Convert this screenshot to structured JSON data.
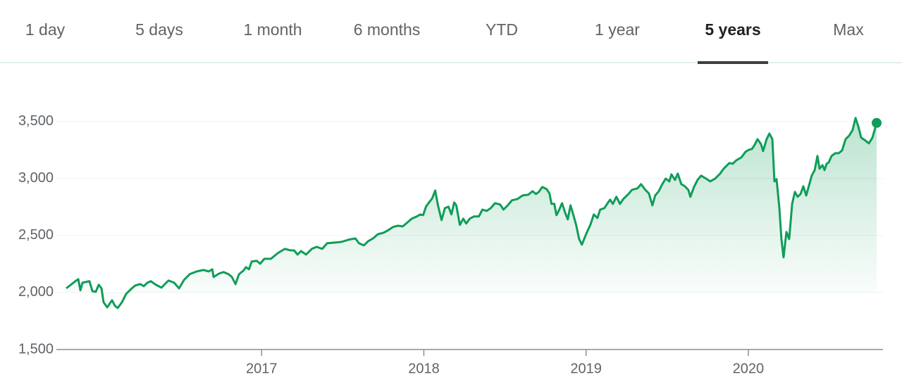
{
  "tabs": [
    "1 day",
    "5 days",
    "1 month",
    "6 months",
    "YTD",
    "1 year",
    "5 years",
    "Max"
  ],
  "selected_tab": 6,
  "chart_data": {
    "type": "area-line",
    "color": "#0f9d58",
    "grid": true,
    "x": [
      2015.796,
      2015.852,
      2015.87,
      2015.883,
      2015.896,
      2015.939,
      2015.957,
      2015.978,
      2015.996,
      2016.013,
      2016.026,
      2016.048,
      2016.078,
      2016.096,
      2016.113,
      2016.139,
      2016.165,
      2016.2,
      2016.222,
      2016.252,
      2016.274,
      2016.296,
      2016.317,
      2016.348,
      2016.383,
      2016.404,
      2016.426,
      2016.461,
      2016.491,
      2016.522,
      2016.557,
      2016.6,
      2016.643,
      2016.674,
      2016.696,
      2016.704,
      2016.739,
      2016.765,
      2016.796,
      2016.817,
      2016.839,
      2016.861,
      2016.887,
      2016.904,
      2016.922,
      2016.939,
      2016.97,
      2016.991,
      2017.017,
      2017.057,
      2017.1,
      2017.143,
      2017.178,
      2017.2,
      2017.222,
      2017.243,
      2017.274,
      2017.309,
      2017.339,
      2017.374,
      2017.404,
      2017.448,
      2017.491,
      2017.535,
      2017.578,
      2017.6,
      2017.63,
      2017.657,
      2017.687,
      2017.717,
      2017.752,
      2017.783,
      2017.809,
      2017.839,
      2017.87,
      2017.896,
      2017.926,
      2017.957,
      2017.978,
      2017.996,
      2018.013,
      2018.035,
      2018.052,
      2018.07,
      2018.087,
      2018.109,
      2018.13,
      2018.152,
      2018.17,
      2018.187,
      2018.2,
      2018.222,
      2018.243,
      2018.261,
      2018.283,
      2018.309,
      2018.339,
      2018.361,
      2018.387,
      2018.413,
      2018.439,
      2018.47,
      2018.491,
      2018.517,
      2018.543,
      2018.578,
      2018.609,
      2018.643,
      2018.67,
      2018.691,
      2018.709,
      2018.73,
      2018.757,
      2018.774,
      2018.787,
      2018.804,
      2018.817,
      2018.835,
      2018.852,
      2018.87,
      2018.887,
      2018.904,
      2018.922,
      2018.939,
      2018.957,
      2018.974,
      2019.0,
      2019.026,
      2019.048,
      2019.07,
      2019.087,
      2019.113,
      2019.13,
      2019.148,
      2019.165,
      2019.187,
      2019.209,
      2019.23,
      2019.261,
      2019.283,
      2019.317,
      2019.339,
      2019.365,
      2019.387,
      2019.409,
      2019.426,
      2019.448,
      2019.47,
      2019.491,
      2019.513,
      2019.526,
      2019.548,
      2019.565,
      2019.587,
      2019.609,
      2019.63,
      2019.643,
      2019.665,
      2019.687,
      2019.709,
      2019.739,
      2019.765,
      2019.796,
      2019.826,
      2019.848,
      2019.883,
      2019.904,
      2019.926,
      2019.957,
      2019.983,
      2020.004,
      2020.022,
      2020.039,
      2020.057,
      2020.078,
      2020.091,
      2020.113,
      2020.13,
      2020.148,
      2020.161,
      2020.174,
      2020.191,
      2020.204,
      2020.217,
      2020.235,
      2020.252,
      2020.27,
      2020.287,
      2020.304,
      2020.322,
      2020.339,
      2020.357,
      2020.374,
      2020.391,
      2020.409,
      2020.426,
      2020.439,
      2020.457,
      2020.47,
      2020.483,
      2020.496,
      2020.513,
      2020.535,
      2020.557,
      2020.578,
      2020.6,
      2020.622,
      2020.643,
      2020.661,
      2020.678,
      2020.696,
      2020.722,
      2020.743,
      2020.765,
      2020.791
    ],
    "values": [
      2037,
      2099,
      2117,
      2019,
      2086,
      2099,
      2012,
      2006,
      2068,
      2037,
      1914,
      1870,
      1932,
      1883,
      1864,
      1914,
      1988,
      2037,
      2062,
      2074,
      2056,
      2086,
      2099,
      2068,
      2043,
      2074,
      2105,
      2086,
      2037,
      2111,
      2161,
      2185,
      2198,
      2185,
      2204,
      2136,
      2167,
      2179,
      2161,
      2136,
      2074,
      2161,
      2191,
      2222,
      2204,
      2272,
      2278,
      2253,
      2296,
      2296,
      2346,
      2383,
      2370,
      2370,
      2333,
      2364,
      2333,
      2383,
      2401,
      2383,
      2432,
      2438,
      2444,
      2463,
      2475,
      2432,
      2414,
      2451,
      2475,
      2512,
      2525,
      2549,
      2574,
      2586,
      2580,
      2611,
      2648,
      2667,
      2685,
      2679,
      2753,
      2796,
      2827,
      2895,
      2765,
      2636,
      2741,
      2753,
      2685,
      2790,
      2765,
      2593,
      2648,
      2605,
      2648,
      2667,
      2667,
      2728,
      2716,
      2741,
      2784,
      2772,
      2728,
      2765,
      2809,
      2821,
      2852,
      2858,
      2889,
      2864,
      2883,
      2926,
      2907,
      2870,
      2778,
      2778,
      2679,
      2728,
      2784,
      2704,
      2642,
      2765,
      2679,
      2593,
      2469,
      2420,
      2512,
      2593,
      2685,
      2654,
      2728,
      2741,
      2778,
      2815,
      2778,
      2840,
      2778,
      2821,
      2864,
      2901,
      2914,
      2951,
      2901,
      2870,
      2765,
      2852,
      2889,
      2951,
      3000,
      2975,
      3037,
      2988,
      3043,
      2951,
      2932,
      2901,
      2840,
      2926,
      2988,
      3025,
      3000,
      2975,
      3000,
      3043,
      3086,
      3136,
      3130,
      3160,
      3185,
      3235,
      3253,
      3259,
      3296,
      3346,
      3302,
      3241,
      3346,
      3395,
      3346,
      2975,
      2994,
      2747,
      2469,
      2309,
      2531,
      2469,
      2778,
      2883,
      2840,
      2864,
      2932,
      2852,
      2938,
      3025,
      3074,
      3198,
      3086,
      3117,
      3074,
      3130,
      3142,
      3198,
      3222,
      3222,
      3247,
      3346,
      3377,
      3426,
      3531,
      3457,
      3358,
      3333,
      3309,
      3358,
      3488
    ],
    "xlim": [
      2015.735,
      2020.83
    ],
    "xticks": [
      2017,
      2018,
      2019,
      2020
    ],
    "ylim": [
      1500,
      3900
    ],
    "yticks": [
      {
        "value": 1500,
        "label": "1,500"
      },
      {
        "value": 2000,
        "label": "2,000"
      },
      {
        "value": 2500,
        "label": "2,500"
      },
      {
        "value": 3000,
        "label": "3,000"
      },
      {
        "value": 3500,
        "label": "3,500"
      }
    ]
  }
}
